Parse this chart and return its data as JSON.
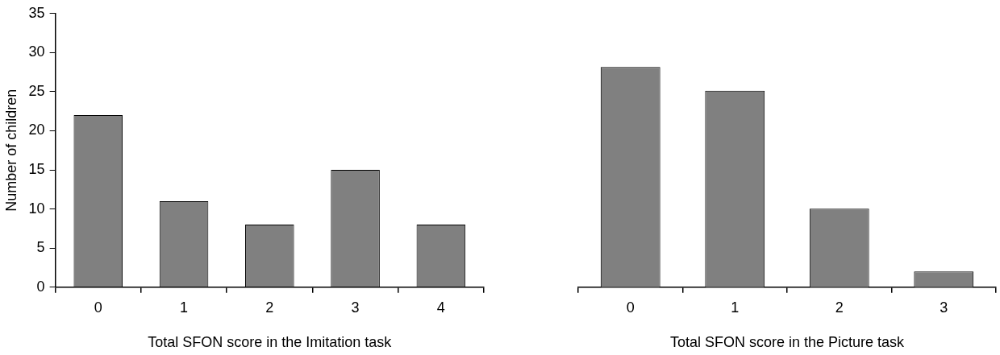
{
  "chart_data": [
    {
      "type": "bar",
      "xlabel": "Total SFON score in the Imitation task",
      "ylabel": "Number of children",
      "categories": [
        "0",
        "1",
        "2",
        "3",
        "4"
      ],
      "values": [
        22,
        11,
        8,
        15,
        8
      ],
      "color": "#808080",
      "ylim": [
        0,
        35
      ],
      "yticks": [
        0,
        5,
        10,
        15,
        20,
        25,
        30,
        35
      ]
    },
    {
      "type": "bar",
      "xlabel": "Total SFON score in the Picture task",
      "categories": [
        "0",
        "1",
        "2",
        "3"
      ],
      "values": [
        28,
        25,
        10,
        2
      ],
      "color": "#808080",
      "ylim": [
        0,
        35
      ],
      "yticks": [
        0,
        5,
        10,
        15,
        20,
        25,
        30,
        35
      ],
      "tick_labels": "x"
    }
  ]
}
